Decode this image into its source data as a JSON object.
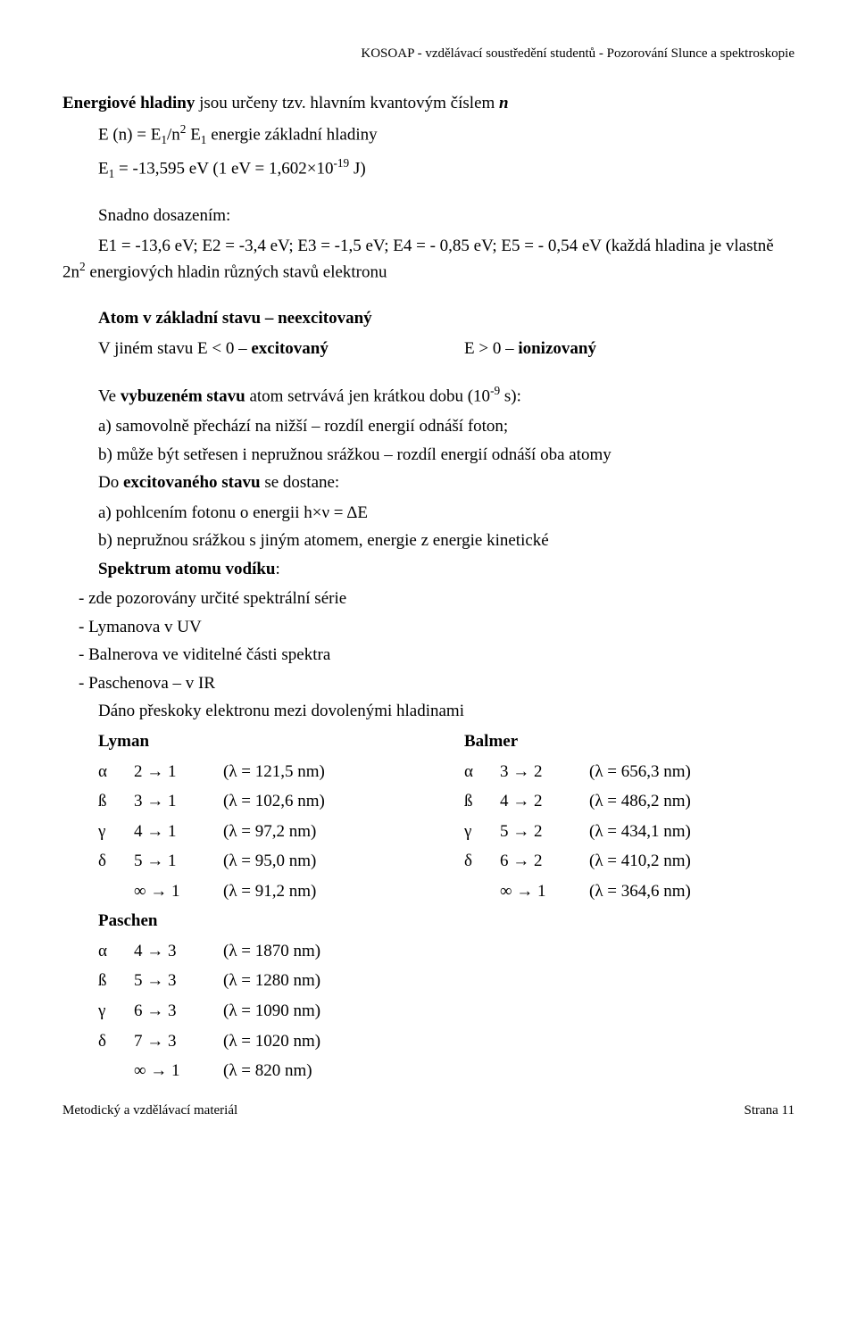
{
  "header": "KOSOAP - vzdělávací soustředění studentů - Pozorování Slunce a spektroskopie",
  "p1_a": "Energiové hladiny",
  "p1_b": " jsou určeny tzv. hlavním kvantovým číslem ",
  "p1_c": "n",
  "p2_a": "E (n) = E",
  "p2_b": "/n",
  "p2_c": "   E",
  "p2_d": " energie základní hladiny",
  "p3_a": "E",
  "p3_b": " = -13,595 eV (1 eV = 1,602×10",
  "p3_c": " J)",
  "p4": "Snadno dosazením:",
  "p5": "E1 = -13,6 eV; E2 = -3,4 eV; E3 = -1,5 eV; E4 = - 0,85 eV; E5 = - 0,54 eV (každá hladina je vlastně 2n",
  "p5b": " energiových hladin různých stavů elektronu",
  "p6_a": "Atom v základní stavu – neexcitovaný",
  "p7_a": "V jiném stavu E < 0 – ",
  "p7_b": "excitovaný",
  "p7_c": "E > 0 – ",
  "p7_d": "ionizovaný",
  "p8_a": "Ve ",
  "p8_b": "vybuzeném stavu",
  "p8_c": " atom setrvává jen krátkou dobu (10",
  "p8_d": "-9",
  "p8_e": " s):",
  "p8_l1": "a) samovolně přechází na nižší – rozdíl energií odnáší foton;",
  "p8_l2": "b) může být setřesen i nepružnou srážkou – rozdíl energií odnáší oba atomy",
  "p9_a": "Do ",
  "p9_b": "excitovaného stavu",
  "p9_c": " se dostane:",
  "p9_l1": "a) pohlcením fotonu o energii h×ν = ΔE",
  "p9_l2": "b) nepružnou srážkou s jiným atomem, energie z energie kinetické",
  "p10_a": "Spektrum atomu vodíku",
  "p10_b": ":",
  "p10_l1": "- zde pozorovány určité spektrální série",
  "p10_l2": "- Lymanova v UV",
  "p10_l3": "- Balnerova ve viditelné části spektra",
  "p10_l4": "- Paschenova – v IR",
  "p11": "Dáno přeskoky elektronu mezi dovolenými hladinami",
  "lyman": {
    "title": "Lyman",
    "rows": [
      {
        "g": "α",
        "t": "2 → 1",
        "w": "(λ = 121,5 nm)"
      },
      {
        "g": "ß",
        "t": "3 → 1",
        "w": "(λ = 102,6 nm)"
      },
      {
        "g": "γ",
        "t": "4 → 1",
        "w": "(λ = 97,2 nm)"
      },
      {
        "g": "δ",
        "t": "5 → 1",
        "w": "(λ = 95,0 nm)"
      },
      {
        "g": "",
        "t": "∞ → 1",
        "w": "(λ = 91,2 nm)"
      }
    ]
  },
  "balmer": {
    "title": "Balmer",
    "rows": [
      {
        "g": "α",
        "t": "3 → 2",
        "w": "(λ = 656,3 nm)"
      },
      {
        "g": "ß",
        "t": "4 → 2",
        "w": "(λ = 486,2 nm)"
      },
      {
        "g": "γ",
        "t": "5 → 2",
        "w": "(λ = 434,1 nm)"
      },
      {
        "g": "δ",
        "t": "6 → 2",
        "w": "(λ = 410,2 nm)"
      },
      {
        "g": "",
        "t": "∞ → 1",
        "w": "(λ = 364,6 nm)"
      }
    ]
  },
  "paschen": {
    "title": "Paschen",
    "rows": [
      {
        "g": "α",
        "t": "4 → 3",
        "w": "(λ = 1870 nm)"
      },
      {
        "g": "ß",
        "t": "5 → 3",
        "w": "(λ = 1280 nm)"
      },
      {
        "g": "γ",
        "t": "6 → 3",
        "w": "(λ = 1090 nm)"
      },
      {
        "g": "δ",
        "t": "7 → 3",
        "w": "(λ = 1020 nm)"
      },
      {
        "g": "",
        "t": "∞ → 1",
        "w": "(λ = 820 nm)"
      }
    ]
  },
  "footer_left": "Metodický a vzdělávací materiál",
  "footer_right": "Strana 11"
}
